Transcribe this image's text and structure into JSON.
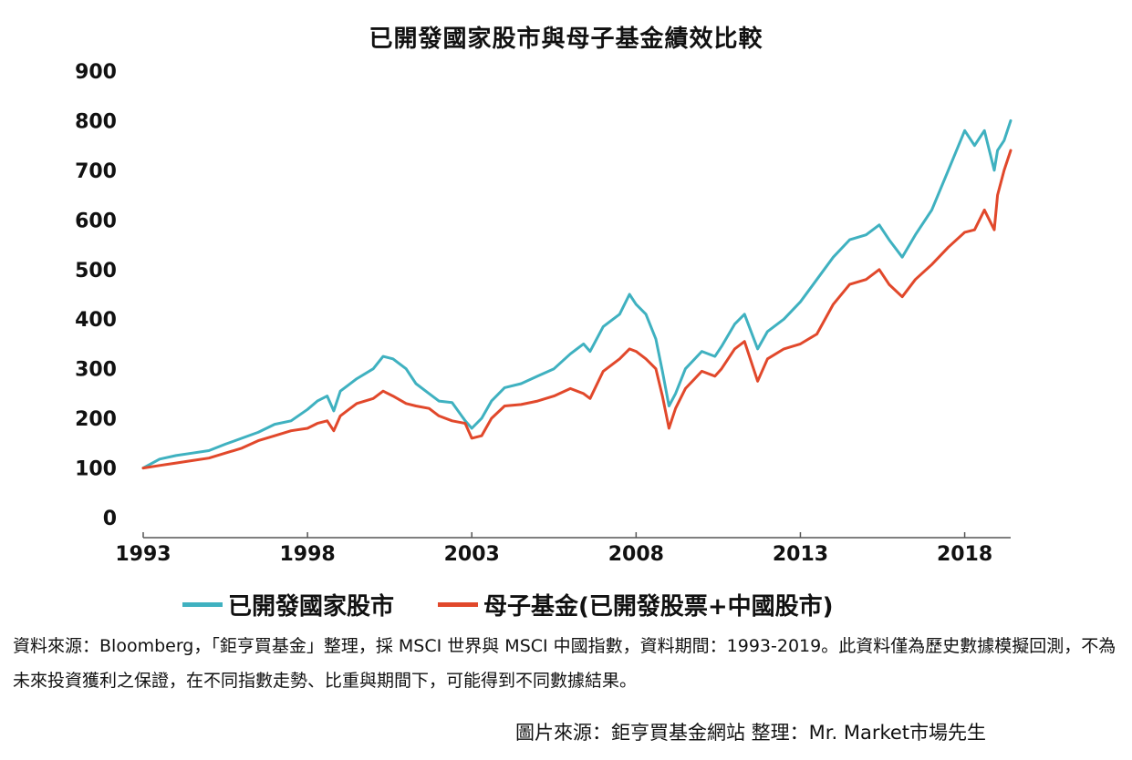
{
  "chart_data": {
    "type": "line",
    "title": "已開發國家股市與母子基金績效比較",
    "xlabel": "",
    "ylabel": "",
    "ylim": [
      0,
      900
    ],
    "xlim": [
      1993.0,
      2019.4
    ],
    "yticks": [
      0,
      100,
      200,
      300,
      400,
      500,
      600,
      700,
      800,
      900
    ],
    "xticks": [
      "1993",
      "1998",
      "2003",
      "2008",
      "2013",
      "2018"
    ],
    "grid": false,
    "legend_position": "bottom",
    "series": [
      {
        "name": "已開發國家股市",
        "color": "#3fb1c0",
        "x": [
          1993.0,
          1993.5,
          1994.0,
          1994.5,
          1995.0,
          1995.5,
          1996.0,
          1996.5,
          1997.0,
          1997.5,
          1998.0,
          1998.3,
          1998.6,
          1998.8,
          1999.0,
          1999.5,
          2000.0,
          2000.3,
          2000.6,
          2001.0,
          2001.3,
          2001.7,
          2002.0,
          2002.4,
          2002.8,
          2003.0,
          2003.3,
          2003.6,
          2004.0,
          2004.5,
          2005.0,
          2005.5,
          2006.0,
          2006.4,
          2006.6,
          2007.0,
          2007.5,
          2007.8,
          2008.0,
          2008.3,
          2008.6,
          2008.8,
          2009.0,
          2009.2,
          2009.5,
          2010.0,
          2010.4,
          2010.6,
          2011.0,
          2011.3,
          2011.7,
          2012.0,
          2012.5,
          2013.0,
          2013.5,
          2014.0,
          2014.5,
          2015.0,
          2015.4,
          2015.7,
          2016.1,
          2016.5,
          2017.0,
          2017.5,
          2018.0,
          2018.3,
          2018.6,
          2018.9,
          2019.0,
          2019.2,
          2019.4
        ],
        "values": [
          100,
          118,
          125,
          130,
          135,
          148,
          160,
          172,
          188,
          195,
          218,
          235,
          245,
          215,
          255,
          280,
          300,
          325,
          320,
          300,
          270,
          250,
          235,
          232,
          195,
          180,
          200,
          235,
          262,
          270,
          285,
          300,
          330,
          350,
          335,
          385,
          410,
          450,
          430,
          410,
          360,
          295,
          225,
          250,
          300,
          335,
          325,
          345,
          390,
          410,
          340,
          375,
          400,
          435,
          480,
          525,
          560,
          570,
          590,
          560,
          525,
          570,
          620,
          700,
          780,
          750,
          780,
          700,
          740,
          760,
          800
        ]
      },
      {
        "name": "母子基金(已開發股票+中國股市)",
        "color": "#e1482b",
        "x": [
          1993.0,
          1993.5,
          1994.0,
          1994.5,
          1995.0,
          1995.5,
          1996.0,
          1996.5,
          1997.0,
          1997.5,
          1998.0,
          1998.3,
          1998.6,
          1998.8,
          1999.0,
          1999.5,
          2000.0,
          2000.3,
          2000.6,
          2001.0,
          2001.3,
          2001.7,
          2002.0,
          2002.4,
          2002.8,
          2003.0,
          2003.3,
          2003.6,
          2004.0,
          2004.5,
          2005.0,
          2005.5,
          2006.0,
          2006.4,
          2006.6,
          2007.0,
          2007.5,
          2007.8,
          2008.0,
          2008.3,
          2008.6,
          2008.8,
          2009.0,
          2009.2,
          2009.5,
          2010.0,
          2010.4,
          2010.6,
          2011.0,
          2011.3,
          2011.7,
          2012.0,
          2012.5,
          2013.0,
          2013.5,
          2014.0,
          2014.5,
          2015.0,
          2015.4,
          2015.7,
          2016.1,
          2016.5,
          2017.0,
          2017.5,
          2018.0,
          2018.3,
          2018.6,
          2018.9,
          2019.0,
          2019.2,
          2019.4
        ],
        "values": [
          100,
          105,
          110,
          115,
          120,
          130,
          140,
          155,
          165,
          175,
          180,
          190,
          195,
          175,
          205,
          230,
          240,
          255,
          245,
          230,
          225,
          220,
          205,
          195,
          190,
          160,
          165,
          200,
          225,
          228,
          235,
          245,
          260,
          250,
          240,
          295,
          320,
          340,
          335,
          320,
          300,
          245,
          180,
          220,
          260,
          295,
          285,
          300,
          340,
          355,
          275,
          320,
          340,
          350,
          370,
          430,
          470,
          480,
          500,
          470,
          445,
          480,
          510,
          545,
          575,
          580,
          620,
          580,
          650,
          700,
          740
        ]
      }
    ]
  },
  "note": "資料來源：Bloomberg，「鉅亨買基金」整理，採 MSCI 世界與 MSCI 中國指數，資料期間：1993-2019。此資料僅為歷史數據模擬回測，不為未來投資獲利之保證，在不同指數走勢、比重與期間下，可能得到不同數據結果。",
  "source": "圖片來源：鉅亨買基金網站  整理：Mr. Market市場先生"
}
